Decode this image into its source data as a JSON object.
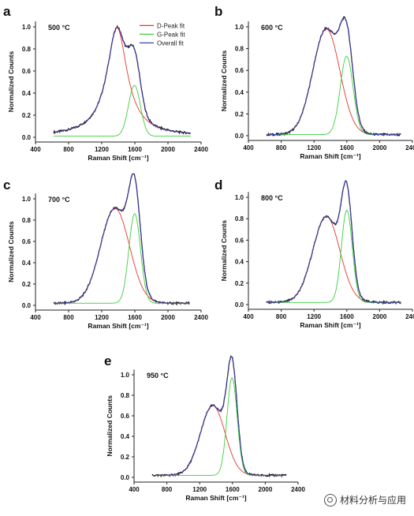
{
  "watermark": {
    "text": "材料分析与应用",
    "icon": "wechat-icon"
  },
  "colors": {
    "d_peak": "#e8342c",
    "g_peak": "#3ccf3c",
    "overall": "#3f3fb8",
    "data": "#1a1a1a"
  },
  "chart_data": [
    {
      "panel": "a",
      "type": "line",
      "annotation": "500 °C",
      "xlabel": "Raman Shift [cm⁻¹]",
      "ylabel": "Normalized Counts",
      "xlim": [
        400,
        2400
      ],
      "ylim": [
        0,
        1.05
      ],
      "xticks": [
        400,
        800,
        1200,
        1600,
        2000,
        2400
      ],
      "yticks": [
        0.0,
        0.2,
        0.4,
        0.6,
        0.8,
        1.0
      ],
      "legend": {
        "position": "top-right",
        "entries": [
          "D-Peak fit",
          "G-Peak fit",
          "Overall fit"
        ]
      },
      "data_range": [
        620,
        2280
      ],
      "series": [
        {
          "name": "D-Peak fit",
          "model": "lorentzian",
          "center": 1385,
          "amplitude": 0.98,
          "width": 150
        },
        {
          "name": "G-Peak fit",
          "model": "gaussian",
          "center": 1595,
          "amplitude": 0.46,
          "width": 72
        }
      ],
      "baseline": 0.01
    },
    {
      "panel": "b",
      "type": "line",
      "annotation": "600 °C",
      "xlabel": "Raman Shift [cm⁻¹]",
      "ylabel": "Normalized Counts",
      "xlim": [
        400,
        2400
      ],
      "ylim": [
        0,
        1.05
      ],
      "xticks": [
        400,
        800,
        1200,
        1600,
        2000,
        2400
      ],
      "yticks": [
        0.0,
        0.2,
        0.4,
        0.6,
        0.8,
        1.0
      ],
      "data_range": [
        620,
        2260
      ],
      "series": [
        {
          "name": "D-Peak fit",
          "model": "gaussian",
          "center": 1350,
          "amplitude": 0.97,
          "width": 165
        },
        {
          "name": "G-Peak fit",
          "model": "gaussian",
          "center": 1598,
          "amplitude": 0.72,
          "width": 78
        }
      ],
      "baseline": 0.01
    },
    {
      "panel": "c",
      "type": "line",
      "annotation": "700 °C",
      "xlabel": "Raman Shift [cm⁻¹]",
      "ylabel": "Normalized Counts",
      "xlim": [
        400,
        2400
      ],
      "ylim": [
        0,
        1.05
      ],
      "xticks": [
        400,
        800,
        1200,
        1600,
        2000,
        2400
      ],
      "yticks": [
        0.0,
        0.2,
        0.4,
        0.6,
        0.8,
        1.0
      ],
      "data_range": [
        620,
        2260
      ],
      "series": [
        {
          "name": "D-Peak fit",
          "model": "gaussian",
          "center": 1360,
          "amplitude": 0.89,
          "width": 175
        },
        {
          "name": "G-Peak fit",
          "model": "gaussian",
          "center": 1598,
          "amplitude": 0.84,
          "width": 70
        }
      ],
      "baseline": 0.02
    },
    {
      "panel": "d",
      "type": "line",
      "annotation": "800 °C",
      "xlabel": "Raman Shift [cm⁻¹]",
      "ylabel": "Normalized Counts",
      "xlim": [
        400,
        2400
      ],
      "ylim": [
        0,
        1.05
      ],
      "xticks": [
        400,
        800,
        1200,
        1600,
        2000,
        2400
      ],
      "yticks": [
        0.0,
        0.2,
        0.4,
        0.6,
        0.8,
        1.0
      ],
      "data_range": [
        620,
        2260
      ],
      "series": [
        {
          "name": "D-Peak fit",
          "model": "gaussian",
          "center": 1350,
          "amplitude": 0.8,
          "width": 165
        },
        {
          "name": "G-Peak fit",
          "model": "gaussian",
          "center": 1600,
          "amplitude": 0.86,
          "width": 66
        }
      ],
      "baseline": 0.02
    },
    {
      "panel": "e",
      "type": "line",
      "annotation": "950 °C",
      "xlabel": "Raman Shift [cm⁻¹]",
      "ylabel": "Normalized Counts",
      "xlim": [
        400,
        2400
      ],
      "ylim": [
        0,
        1.05
      ],
      "xticks": [
        400,
        800,
        1200,
        1600,
        2000,
        2400
      ],
      "yticks": [
        0.0,
        0.2,
        0.4,
        0.6,
        0.8,
        1.0
      ],
      "data_range": [
        620,
        2260
      ],
      "series": [
        {
          "name": "D-Peak fit",
          "model": "gaussian",
          "center": 1360,
          "amplitude": 0.68,
          "width": 150
        },
        {
          "name": "G-Peak fit",
          "model": "gaussian",
          "center": 1595,
          "amplitude": 0.95,
          "width": 62
        }
      ],
      "baseline": 0.02
    }
  ]
}
